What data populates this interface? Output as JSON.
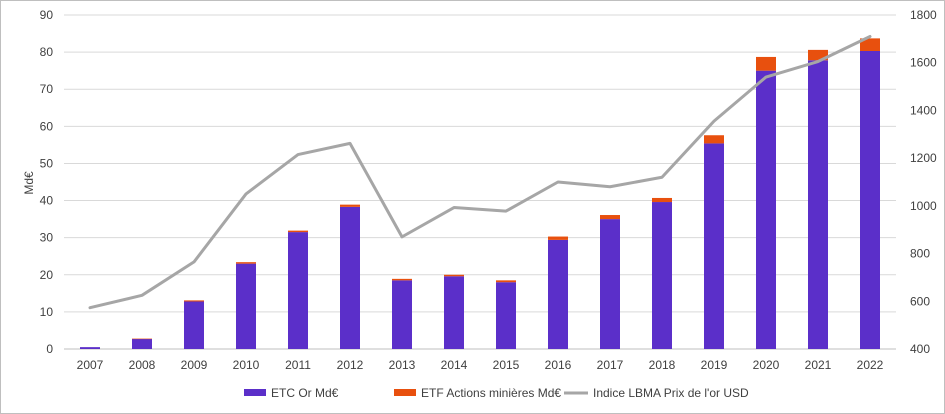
{
  "chart_data": {
    "type": "bar",
    "stacked": true,
    "categories": [
      "2007",
      "2008",
      "2009",
      "2010",
      "2011",
      "2012",
      "2013",
      "2014",
      "2015",
      "2016",
      "2017",
      "2018",
      "2019",
      "2020",
      "2021",
      "2022"
    ],
    "series": [
      {
        "name": "ETC Or Md€",
        "axis": "left",
        "kind": "bar",
        "color": "#5b2fc9",
        "values": [
          0.5,
          2.7,
          12.8,
          23.0,
          31.5,
          38.3,
          18.5,
          19.6,
          18.0,
          29.4,
          35.0,
          39.6,
          55.4,
          75.0,
          77.8,
          80.3
        ]
      },
      {
        "name": "ETF Actions minières Md€",
        "axis": "left",
        "kind": "bar",
        "color": "#e8500e",
        "values": [
          0.0,
          0.1,
          0.3,
          0.4,
          0.4,
          0.6,
          0.4,
          0.4,
          0.5,
          0.9,
          1.1,
          1.1,
          2.2,
          3.7,
          2.8,
          3.4
        ]
      },
      {
        "name": "Indice LBMA Prix de l'or USD",
        "axis": "right",
        "kind": "line",
        "color": "#a6a6a6",
        "values": [
          573,
          625,
          765,
          1050,
          1215,
          1262,
          870,
          993,
          978,
          1100,
          1080,
          1120,
          1355,
          1540,
          1605,
          1710
        ]
      }
    ],
    "ylabel": "Md€",
    "ylim": [
      0,
      90
    ],
    "yticks": [
      "0",
      "10",
      "20",
      "30",
      "40",
      "50",
      "60",
      "70",
      "80",
      "90"
    ],
    "y2lim": [
      400,
      1800
    ],
    "y2ticks": [
      "400",
      "600",
      "800",
      "1000",
      "1200",
      "1400",
      "1600",
      "1800"
    ],
    "grid": true,
    "legend": "bottom"
  }
}
